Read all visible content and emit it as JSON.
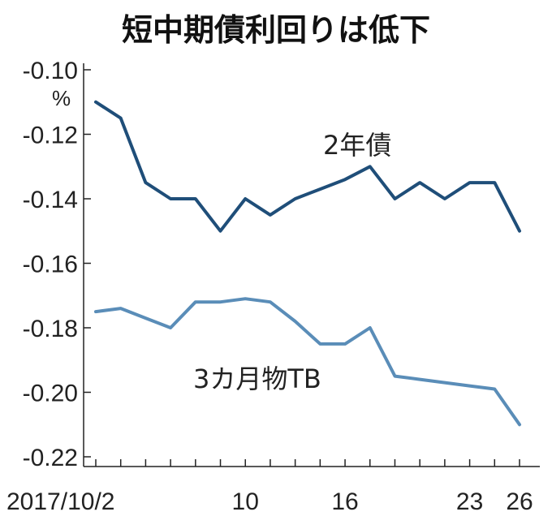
{
  "chart_data": {
    "type": "line",
    "title": "短中期債利回りは低下",
    "unit_label": "%",
    "ylim": [
      -0.22,
      -0.1
    ],
    "y_ticks": [
      "-0.10",
      "-0.12",
      "-0.14",
      "-0.16",
      "-0.18",
      "-0.20",
      "-0.22"
    ],
    "x_tick_labels": [
      "2017/10/2",
      "10",
      "16",
      "23",
      "26"
    ],
    "x_tick_index": [
      0,
      6,
      10,
      15,
      17
    ],
    "x_count": 18,
    "series": [
      {
        "name": "2年債",
        "color": "#1f4e79",
        "values": [
          -0.11,
          -0.115,
          -0.135,
          -0.14,
          -0.14,
          -0.15,
          -0.14,
          -0.145,
          -0.14,
          -0.137,
          -0.134,
          -0.13,
          -0.14,
          -0.135,
          -0.14,
          -0.135,
          -0.135,
          -0.15
        ]
      },
      {
        "name": "3カ月物TB",
        "color": "#5a8db8",
        "values": [
          -0.175,
          -0.174,
          -0.177,
          -0.18,
          -0.172,
          -0.172,
          -0.171,
          -0.172,
          -0.178,
          -0.185,
          -0.185,
          -0.18,
          -0.195,
          -0.196,
          -0.197,
          -0.198,
          -0.199,
          -0.21
        ]
      }
    ]
  }
}
